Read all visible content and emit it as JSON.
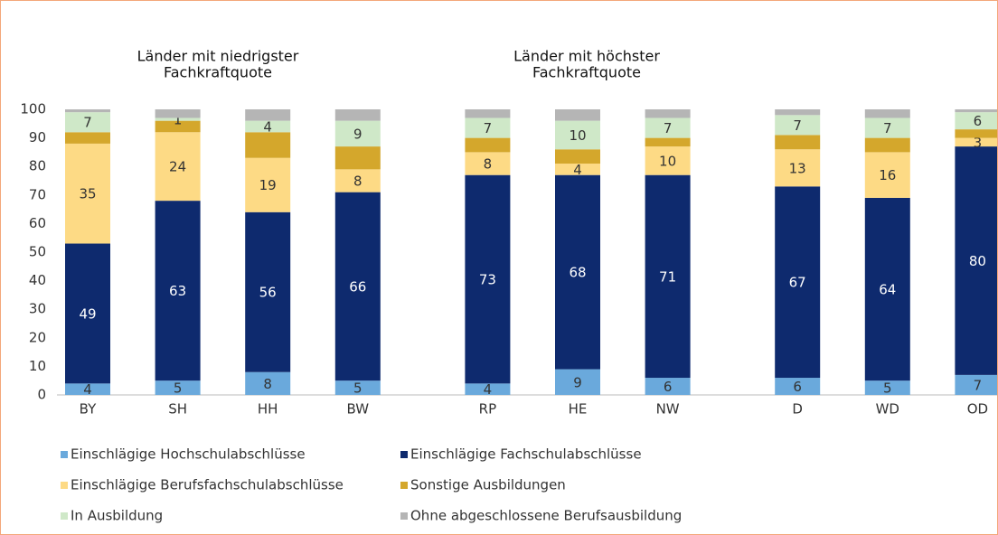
{
  "chart_data": {
    "type": "stacked_bar",
    "group_titles": [
      [
        "Länder mit niedrigster",
        "Fachkraftquote"
      ],
      [
        "Länder mit höchster",
        "Fachkraftquote"
      ]
    ],
    "categories": [
      "BY",
      "SH",
      "HH",
      "BW",
      "RP",
      "HE",
      "NW",
      "D",
      "WD",
      "OD"
    ],
    "ylim": [
      0,
      100
    ],
    "yticks": [
      0,
      10,
      20,
      30,
      40,
      50,
      60,
      70,
      80,
      90,
      100
    ],
    "series": [
      {
        "name": "Einschlägige Hochschulabschlüsse",
        "color": "#6aa9dc",
        "data_labels": true,
        "values": [
          4,
          5,
          8,
          5,
          4,
          9,
          6,
          6,
          5,
          7
        ]
      },
      {
        "name": "Einschlägige Fachschulabschlüsse",
        "color": "#0e2a6e",
        "data_labels": true,
        "values": [
          49,
          63,
          56,
          66,
          73,
          68,
          71,
          67,
          64,
          80
        ]
      },
      {
        "name": "Einschlägige Berufsfachschulabschlüsse",
        "color": "#fdda85",
        "data_labels": true,
        "values": [
          35,
          24,
          19,
          8,
          8,
          4,
          10,
          13,
          16,
          3
        ]
      },
      {
        "name": "Sonstige Ausbildungen",
        "color": "#d4a72c",
        "data_labels": false,
        "values": [
          4,
          4,
          9,
          8,
          5,
          5,
          3,
          5,
          5,
          3
        ]
      },
      {
        "name": "In Ausbildung",
        "color": "#cfe8c8",
        "data_labels": true,
        "values": [
          7,
          1,
          4,
          9,
          7,
          10,
          7,
          7,
          7,
          6
        ]
      },
      {
        "name": "Ohne abgeschlossene Berufsausbildung",
        "color": "#b5b5b5",
        "data_labels": false,
        "values": [
          1,
          3,
          4,
          4,
          3,
          4,
          3,
          2,
          3,
          1
        ]
      }
    ]
  }
}
